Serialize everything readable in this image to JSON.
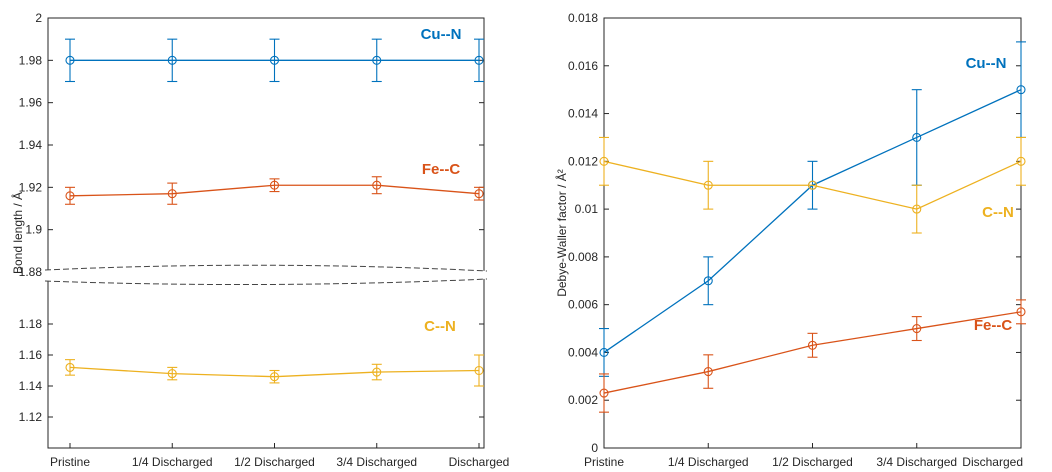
{
  "chart_data": [
    {
      "type": "line",
      "categories": [
        "Pristine",
        "1/4 Discharged",
        "1/2 Discharged",
        "3/4 Discharged",
        "Discharged"
      ],
      "ylabel": "Bond length / Å",
      "axis_break": [
        1.88
      ],
      "upper_ylim": [
        1.88,
        2.0
      ],
      "upper_yticks": [
        "1.88",
        "1.9",
        "1.92",
        "1.94",
        "1.96",
        "1.98",
        "2"
      ],
      "lower_ylim": [
        1.1,
        1.2
      ],
      "lower_yticks": [
        "1.12",
        "1.14",
        "1.16",
        "1.18"
      ],
      "grid": false,
      "series": [
        {
          "name": "Cu--N",
          "color": "#0072BD",
          "segment": "upper",
          "values": [
            1.98,
            1.98,
            1.98,
            1.98,
            1.98
          ],
          "errors": [
            0.01,
            0.01,
            0.01,
            0.01,
            0.01
          ]
        },
        {
          "name": "Fe--C",
          "color": "#D95319",
          "segment": "upper",
          "values": [
            1.916,
            1.917,
            1.921,
            1.921,
            1.917
          ],
          "errors": [
            0.004,
            0.005,
            0.003,
            0.004,
            0.003
          ]
        },
        {
          "name": "C--N",
          "color": "#EDB120",
          "segment": "lower",
          "values": [
            1.152,
            1.148,
            1.146,
            1.149,
            1.15
          ],
          "errors": [
            0.005,
            0.004,
            0.004,
            0.005,
            0.01
          ]
        }
      ]
    },
    {
      "type": "line",
      "categories": [
        "Pristine",
        "1/4 Discharged",
        "1/2 Discharged",
        "3/4 Discharged",
        "Discharged"
      ],
      "ylabel": "Debye-Waller factor / Å²",
      "ylim": [
        0,
        0.018
      ],
      "yticks": [
        "0",
        "0.002",
        "0.004",
        "0.006",
        "0.008",
        "0.01",
        "0.012",
        "0.014",
        "0.016",
        "0.018"
      ],
      "grid": false,
      "series": [
        {
          "name": "Cu--N",
          "color": "#0072BD",
          "values": [
            0.004,
            0.007,
            0.011,
            0.013,
            0.015
          ],
          "errors": [
            0.001,
            0.001,
            0.001,
            0.002,
            0.002
          ]
        },
        {
          "name": "C--N",
          "color": "#EDB120",
          "values": [
            0.012,
            0.011,
            0.011,
            0.01,
            0.012
          ],
          "errors": [
            0.001,
            0.001,
            0.0,
            0.001,
            0.001
          ]
        },
        {
          "name": "Fe--C",
          "color": "#D95319",
          "values": [
            0.0023,
            0.0032,
            0.0043,
            0.005,
            0.0057
          ],
          "errors": [
            0.0008,
            0.0007,
            0.0005,
            0.0005,
            0.0005
          ]
        }
      ]
    }
  ]
}
